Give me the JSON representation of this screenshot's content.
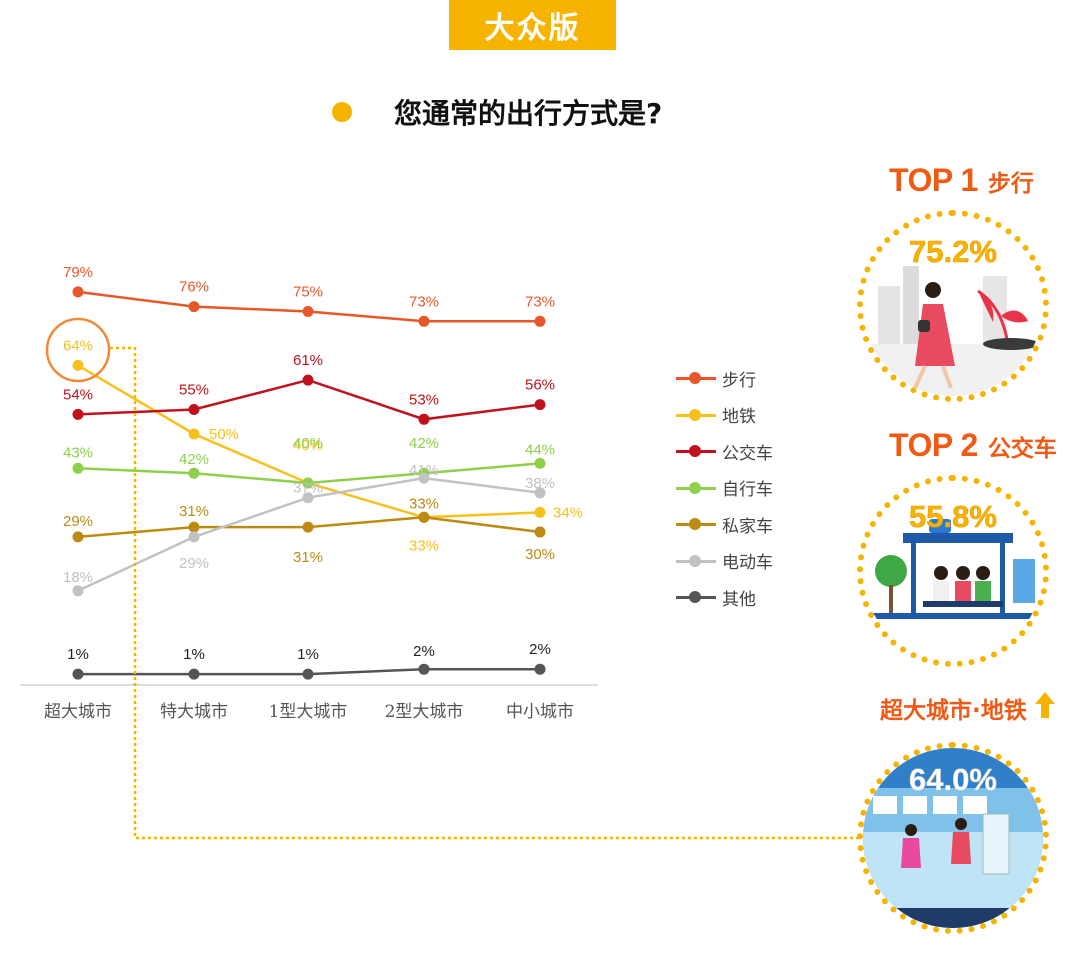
{
  "header": {
    "badge": "大众版",
    "question": "您通常的出行方式是?"
  },
  "colors": {
    "walk": "#e8572a",
    "metro": "#f6c11c",
    "bus": "#c0121c",
    "bike": "#8fcf4b",
    "car": "#bd8a12",
    "ebike": "#c2c2c2",
    "other": "#555555",
    "accent": "#f6b400",
    "highlight": "#f05a14"
  },
  "chart_data": {
    "type": "line",
    "categories": [
      "超大城市",
      "特大城市",
      "1型大城市",
      "2型大城市",
      "中小城市"
    ],
    "unit": "%",
    "series": [
      {
        "name": "步行",
        "values": [
          79,
          76,
          75,
          73,
          73
        ]
      },
      {
        "name": "地铁",
        "values": [
          64,
          50,
          40,
          33,
          34
        ]
      },
      {
        "name": "公交车",
        "values": [
          54,
          55,
          61,
          53,
          56
        ]
      },
      {
        "name": "自行车",
        "values": [
          43,
          42,
          40,
          42,
          44
        ]
      },
      {
        "name": "私家车",
        "values": [
          29,
          31,
          31,
          33,
          30
        ]
      },
      {
        "name": "电动车",
        "values": [
          18,
          29,
          37,
          41,
          38
        ]
      },
      {
        "name": "其他",
        "values": [
          1,
          1,
          1,
          2,
          2
        ]
      }
    ],
    "legend_position": "right",
    "highlight": {
      "series": "地铁",
      "category": "超大城市"
    }
  },
  "highlights": {
    "top1": {
      "rank": "TOP 1",
      "label": "步行",
      "value": "75.2%"
    },
    "top2": {
      "rank": "TOP 2",
      "label": "公交车",
      "value": "55.8%"
    },
    "metro": {
      "label": "超大城市·地铁",
      "value": "64.0%",
      "icon": "up-arrow-icon"
    }
  }
}
